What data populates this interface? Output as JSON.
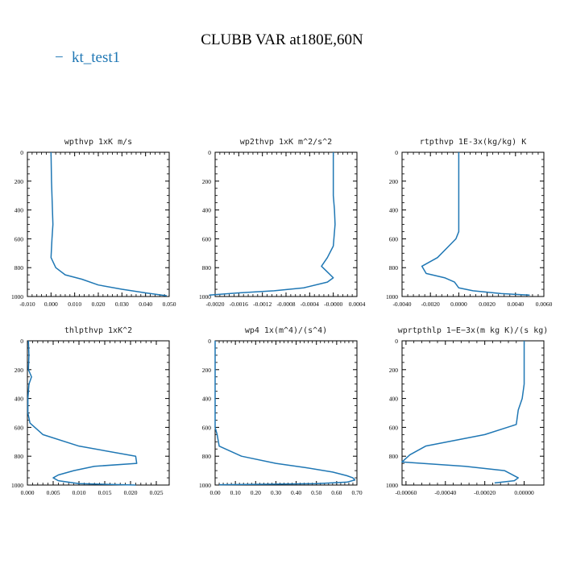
{
  "figure": {
    "title": "CLUBB VAR at180E,60N",
    "legend_label": "kt_test1",
    "legend_symbol": "−",
    "line_color": "#1f77b4"
  },
  "chart_data": [
    {
      "type": "line",
      "title": "wpthvp   1xK m/s",
      "xlim": [
        -0.01,
        0.05
      ],
      "ylim": [
        0,
        1000
      ],
      "x_ticks": [
        -0.01,
        0.0,
        0.01,
        0.02,
        0.03,
        0.04,
        0.05
      ],
      "x_tick_labels": [
        "-0.010",
        "0.000",
        "0.010",
        "0.020",
        "0.030",
        "0.040",
        "0.050"
      ],
      "y_ticks": [
        0,
        200,
        400,
        600,
        800,
        1000
      ],
      "y_tick_labels": [
        "0",
        "200",
        "400",
        "600",
        "800",
        "1000"
      ],
      "series": [
        {
          "name": "kt_test1",
          "x": [
            0.0,
            0.0002,
            0.0006,
            0.0008,
            0.0004,
            0.0,
            0.002,
            0.006,
            0.013,
            0.02,
            0.03,
            0.04,
            0.049
          ],
          "y": [
            0,
            200,
            400,
            500,
            600,
            730,
            800,
            850,
            880,
            920,
            950,
            975,
            995
          ]
        }
      ]
    },
    {
      "type": "line",
      "title": "wp2thvp   1xK m^2/s^2",
      "xlim": [
        -0.002,
        0.0004
      ],
      "ylim": [
        0,
        1000
      ],
      "x_ticks": [
        -0.002,
        -0.0016,
        -0.0012,
        -0.0008,
        -0.0004,
        0.0,
        0.0004
      ],
      "x_tick_labels": [
        "-0.0020",
        "-0.0016",
        "-0.0012",
        "-0.0008",
        "-0.0004",
        "-0.0000",
        "0.0004"
      ],
      "y_ticks": [
        0,
        200,
        400,
        600,
        800,
        1000
      ],
      "y_tick_labels": [
        "0",
        "200",
        "400",
        "600",
        "800",
        "1000"
      ],
      "series": [
        {
          "name": "kt_test1",
          "x": [
            0.0,
            0.0,
            2e-05,
            3e-05,
            0.0,
            -0.0001,
            -0.0002,
            -0.0001,
            0.0,
            -0.0001,
            -0.0005,
            -0.001,
            -0.0016,
            -0.0021
          ],
          "y": [
            0,
            300,
            400,
            500,
            650,
            730,
            790,
            830,
            870,
            900,
            940,
            960,
            975,
            990
          ]
        }
      ]
    },
    {
      "type": "line",
      "title": "rtpthvp   1E-3x(kg/kg) K",
      "xlim": [
        -0.004,
        0.006
      ],
      "ylim": [
        0,
        1000
      ],
      "x_ticks": [
        -0.004,
        -0.002,
        0.0,
        0.002,
        0.004,
        0.006
      ],
      "x_tick_labels": [
        "-0.0040",
        "-0.0020",
        "0.0000",
        "0.0020",
        "0.0040",
        "0.0060"
      ],
      "y_ticks": [
        0,
        200,
        400,
        600,
        800,
        1000
      ],
      "y_tick_labels": [
        "0",
        "200",
        "400",
        "600",
        "800",
        "1000"
      ],
      "series": [
        {
          "name": "kt_test1",
          "x": [
            0.0,
            0.0,
            0.0,
            -0.0002,
            -0.0007,
            -0.0015,
            -0.0026,
            -0.0023,
            -0.001,
            -0.0003,
            0.0,
            0.001,
            0.003,
            0.005
          ],
          "y": [
            0,
            300,
            550,
            600,
            650,
            730,
            790,
            840,
            870,
            900,
            940,
            960,
            980,
            990
          ]
        }
      ]
    },
    {
      "type": "line",
      "title": "thlpthvp   1xK^2",
      "xlim": [
        0.0,
        0.0275
      ],
      "ylim": [
        0,
        1000
      ],
      "x_ticks": [
        0.0,
        0.005,
        0.01,
        0.015,
        0.02,
        0.025
      ],
      "x_tick_labels": [
        "0.000",
        "0.005",
        "0.010",
        "0.015",
        "0.020",
        "0.025"
      ],
      "y_ticks": [
        0,
        200,
        400,
        600,
        800,
        1000
      ],
      "y_tick_labels": [
        "0",
        "200",
        "400",
        "600",
        "800",
        "1000"
      ],
      "series": [
        {
          "name": "kt_test1",
          "x": [
            0.0002,
            0.0003,
            0.0002,
            0.0008,
            0.0003,
            0.0001,
            0.0001,
            0.0005,
            0.003,
            0.01,
            0.021,
            0.0212,
            0.013,
            0.009,
            0.006,
            0.005,
            0.006,
            0.01,
            0.021
          ],
          "y": [
            0,
            100,
            200,
            250,
            300,
            400,
            500,
            570,
            650,
            730,
            800,
            850,
            870,
            900,
            930,
            950,
            970,
            990,
            1000
          ]
        }
      ]
    },
    {
      "type": "line",
      "title": "wp4   1x(m^4)/(s^4)",
      "xlim": [
        0.0,
        0.7
      ],
      "ylim": [
        0,
        1000
      ],
      "x_ticks": [
        0.0,
        0.1,
        0.2,
        0.3,
        0.4,
        0.5,
        0.6,
        0.7
      ],
      "x_tick_labels": [
        "0.00",
        "0.10",
        "0.20",
        "0.30",
        "0.40",
        "0.50",
        "0.60",
        "0.70"
      ],
      "y_ticks": [
        0,
        200,
        400,
        600,
        800,
        1000
      ],
      "y_tick_labels": [
        "0",
        "200",
        "400",
        "600",
        "800",
        "1000"
      ],
      "series": [
        {
          "name": "kt_test1",
          "x": [
            0.0,
            0.0,
            0.0,
            0.01,
            0.02,
            0.13,
            0.3,
            0.45,
            0.58,
            0.65,
            0.68,
            0.69,
            0.65,
            0.5,
            0.2,
            0.02
          ],
          "y": [
            0,
            300,
            600,
            650,
            730,
            800,
            850,
            880,
            910,
            935,
            950,
            965,
            980,
            990,
            995,
            998
          ]
        }
      ]
    },
    {
      "type": "line",
      "title": "wprtpthlp   1−E−3x(m kg K)/(s kg)",
      "xlim": [
        -0.00062,
        0.0001
      ],
      "ylim": [
        0,
        1000
      ],
      "x_ticks": [
        -0.0006,
        -0.0004,
        -0.0002,
        0.0
      ],
      "x_tick_labels": [
        "-0.00060",
        "-0.00040",
        "-0.00020",
        "0.00000"
      ],
      "y_ticks": [
        0,
        200,
        400,
        600,
        800,
        1000
      ],
      "y_tick_labels": [
        "0",
        "200",
        "400",
        "600",
        "800",
        "1000"
      ],
      "series": [
        {
          "name": "kt_test1",
          "x": [
            0.0,
            0.0,
            -1e-05,
            -3e-05,
            -4e-05,
            -0.0002,
            -0.0005,
            -0.00058,
            -0.00062,
            -0.0003,
            -0.0001,
            -3e-05,
            -5e-05,
            -0.00015
          ],
          "y": [
            0,
            300,
            400,
            480,
            580,
            650,
            730,
            790,
            840,
            870,
            900,
            950,
            970,
            985
          ]
        }
      ]
    }
  ]
}
